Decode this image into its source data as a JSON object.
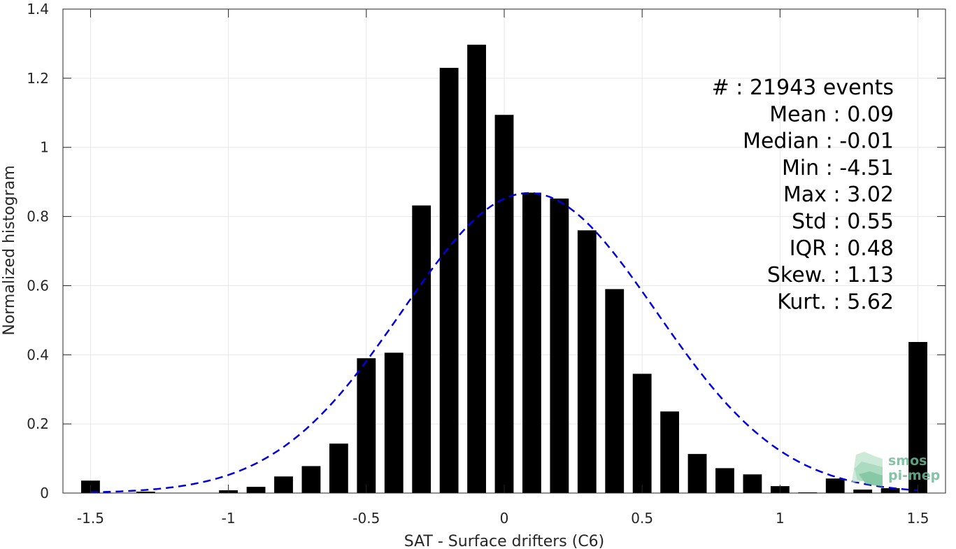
{
  "chart_data": {
    "type": "bar",
    "xlabel": "SAT - Surface drifters (C6)",
    "ylabel": "Normalized histogram",
    "xlim": [
      -1.6,
      1.6
    ],
    "ylim": [
      0,
      1.4
    ],
    "xticks": [
      -1.5,
      -1,
      -0.5,
      0,
      0.5,
      1,
      1.5
    ],
    "xtick_labels": [
      "-1.5",
      "-1",
      "-0.5",
      "0",
      "0.5",
      "1",
      "1.5"
    ],
    "yticks": [
      0,
      0.2,
      0.4,
      0.6,
      0.8,
      1,
      1.2,
      1.4
    ],
    "ytick_labels": [
      "0",
      "0.2",
      "0.4",
      "0.6",
      "0.8",
      "1",
      "1.2",
      "1.4"
    ],
    "grid": true,
    "bin_width": 0.1,
    "bar_color": "#000000",
    "bins": [
      {
        "x": -1.5,
        "y": 0.036
      },
      {
        "x": -1.4,
        "y": 0.0
      },
      {
        "x": -1.3,
        "y": 0.004
      },
      {
        "x": -1.2,
        "y": 0.0
      },
      {
        "x": -1.1,
        "y": 0.0
      },
      {
        "x": -1.0,
        "y": 0.008
      },
      {
        "x": -0.9,
        "y": 0.018
      },
      {
        "x": -0.8,
        "y": 0.048
      },
      {
        "x": -0.7,
        "y": 0.078
      },
      {
        "x": -0.6,
        "y": 0.143
      },
      {
        "x": -0.5,
        "y": 0.39
      },
      {
        "x": -0.4,
        "y": 0.406
      },
      {
        "x": -0.3,
        "y": 0.832
      },
      {
        "x": -0.2,
        "y": 1.23
      },
      {
        "x": -0.1,
        "y": 1.297
      },
      {
        "x": 0.0,
        "y": 1.094
      },
      {
        "x": 0.1,
        "y": 0.869
      },
      {
        "x": 0.2,
        "y": 0.852
      },
      {
        "x": 0.3,
        "y": 0.76
      },
      {
        "x": 0.4,
        "y": 0.59
      },
      {
        "x": 0.5,
        "y": 0.345
      },
      {
        "x": 0.6,
        "y": 0.236
      },
      {
        "x": 0.7,
        "y": 0.113
      },
      {
        "x": 0.8,
        "y": 0.072
      },
      {
        "x": 0.9,
        "y": 0.054
      },
      {
        "x": 1.0,
        "y": 0.02
      },
      {
        "x": 1.1,
        "y": 0.002
      },
      {
        "x": 1.2,
        "y": 0.042
      },
      {
        "x": 1.3,
        "y": 0.01
      },
      {
        "x": 1.4,
        "y": 0.014
      },
      {
        "x": 1.5,
        "y": 0.437
      }
    ],
    "fit_curve": {
      "type": "gaussian",
      "mean": 0.09,
      "std": 0.46,
      "peak": 0.868,
      "x_range": [
        -1.5,
        1.5
      ],
      "color": "#0000e0",
      "style": "dashed"
    },
    "stats_text": [
      "#  : 21943 events",
      "Mean : 0.09",
      "Median : -0.01",
      "Min : -4.51",
      "Max : 3.02",
      "Std : 0.55",
      "IQR : 0.48",
      "Skew. : 1.13",
      "Kurt. : 5.62"
    ]
  },
  "logo": {
    "line1": "smos",
    "line2": "pi-mep",
    "color": "#6fb996"
  }
}
